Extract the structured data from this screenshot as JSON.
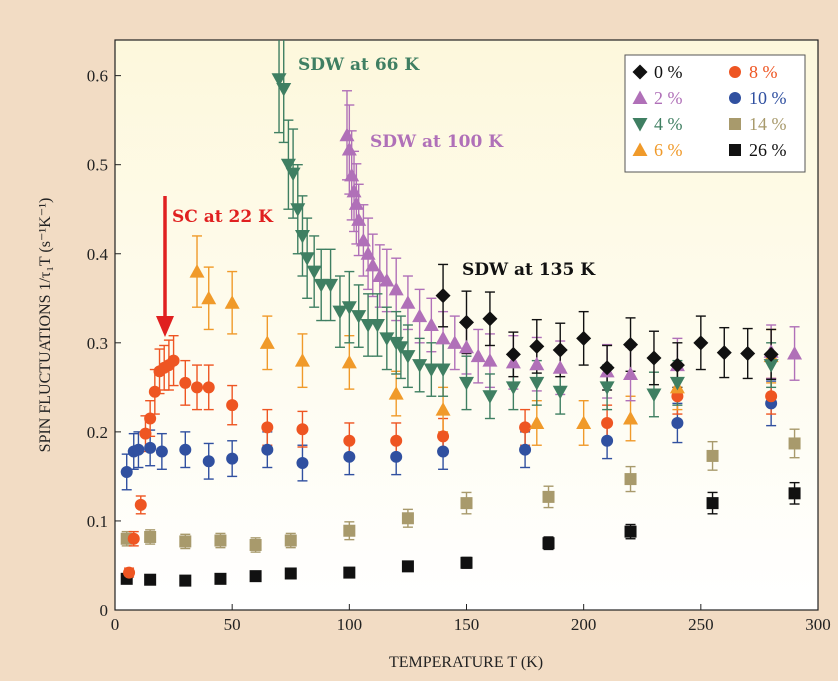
{
  "chart_data": {
    "type": "scatter",
    "xlabel": "TEMPERATURE T (K)",
    "ylabel": "SPIN FLUCTUATIONS 1/τ₁T (s⁻¹K⁻¹)",
    "xlim": [
      0,
      300
    ],
    "ylim": [
      0,
      0.64
    ],
    "xticks": [
      "0",
      "50",
      "100",
      "150",
      "200",
      "250",
      "300"
    ],
    "yticks": [
      "0",
      "0.1",
      "0.2",
      "0.3",
      "0.4",
      "0.5",
      "0.6"
    ],
    "grid": false,
    "legend_position": "top-right",
    "annotations": [
      {
        "text": "SDW at 66 K",
        "color": "#3f7f62"
      },
      {
        "text": "SDW at 100 K",
        "color": "#b070b8"
      },
      {
        "text": "SC at 22 K",
        "color": "#e02020"
      },
      {
        "text": "SDW at 135 K",
        "color": "#111111"
      }
    ],
    "series": [
      {
        "name": "0 %",
        "marker": "diamond",
        "color": "#111111",
        "x": [
          140,
          150,
          160,
          170,
          180,
          190,
          200,
          210,
          220,
          230,
          240,
          250,
          260,
          270,
          280
        ],
        "y": [
          0.353,
          0.323,
          0.327,
          0.287,
          0.296,
          0.292,
          0.305,
          0.272,
          0.298,
          0.283,
          0.275,
          0.3,
          0.289,
          0.288,
          0.287
        ],
        "err": [
          0.035,
          0.035,
          0.03,
          0.025,
          0.03,
          0.03,
          0.03,
          0.025,
          0.03,
          0.03,
          0.025,
          0.03,
          0.028,
          0.028,
          0.028
        ]
      },
      {
        "name": "2 %",
        "marker": "triangle-up",
        "color": "#b070b8",
        "x": [
          99,
          100,
          101,
          102,
          103,
          104,
          106,
          108,
          110,
          113,
          116,
          120,
          125,
          130,
          135,
          140,
          145,
          150,
          155,
          160,
          170,
          180,
          190,
          210,
          220,
          240,
          280,
          290
        ],
        "y": [
          0.533,
          0.517,
          0.488,
          0.47,
          0.456,
          0.438,
          0.415,
          0.4,
          0.387,
          0.375,
          0.37,
          0.36,
          0.345,
          0.33,
          0.32,
          0.305,
          0.3,
          0.295,
          0.285,
          0.28,
          0.278,
          0.276,
          0.272,
          0.268,
          0.265,
          0.275,
          0.29,
          0.288
        ],
        "err": [
          0.05,
          0.05,
          0.05,
          0.045,
          0.045,
          0.04,
          0.04,
          0.04,
          0.035,
          0.035,
          0.035,
          0.035,
          0.03,
          0.03,
          0.03,
          0.03,
          0.03,
          0.03,
          0.03,
          0.03,
          0.03,
          0.03,
          0.03,
          0.03,
          0.03,
          0.03,
          0.03,
          0.03
        ]
      },
      {
        "name": "4 %",
        "marker": "triangle-down",
        "color": "#3f7f62",
        "x": [
          70,
          72,
          74,
          76,
          78,
          80,
          82,
          85,
          88,
          92,
          96,
          100,
          104,
          108,
          112,
          116,
          120,
          122,
          125,
          130,
          135,
          140,
          150,
          160,
          170,
          180,
          190,
          210,
          230,
          240,
          280
        ],
        "y": [
          0.596,
          0.585,
          0.5,
          0.49,
          0.45,
          0.42,
          0.395,
          0.38,
          0.365,
          0.365,
          0.335,
          0.34,
          0.33,
          0.32,
          0.32,
          0.305,
          0.3,
          0.295,
          0.285,
          0.275,
          0.27,
          0.27,
          0.255,
          0.24,
          0.25,
          0.255,
          0.245,
          0.25,
          0.242,
          0.255,
          0.275
        ],
        "err": [
          0.06,
          0.06,
          0.05,
          0.05,
          0.05,
          0.045,
          0.045,
          0.04,
          0.04,
          0.04,
          0.04,
          0.04,
          0.035,
          0.035,
          0.035,
          0.035,
          0.035,
          0.035,
          0.035,
          0.03,
          0.03,
          0.03,
          0.03,
          0.025,
          0.025,
          0.025,
          0.025,
          0.025,
          0.025,
          0.025,
          0.025
        ]
      },
      {
        "name": "6 %",
        "marker": "triangle-up",
        "color": "#f09a2a",
        "x": [
          35,
          40,
          50,
          65,
          80,
          100,
          120,
          140,
          180,
          200,
          220,
          240,
          280
        ],
        "y": [
          0.38,
          0.35,
          0.345,
          0.3,
          0.28,
          0.278,
          0.243,
          0.225,
          0.21,
          0.21,
          0.215,
          0.25,
          0.285
        ],
        "err": [
          0.04,
          0.035,
          0.035,
          0.03,
          0.03,
          0.03,
          0.025,
          0.025,
          0.025,
          0.025,
          0.025,
          0.025,
          0.03
        ]
      },
      {
        "name": "8 %",
        "marker": "circle",
        "color": "#ee5522",
        "x": [
          6,
          8,
          11,
          13,
          15,
          17,
          19,
          21,
          23,
          25,
          30,
          35,
          40,
          50,
          65,
          80,
          100,
          120,
          140,
          175,
          210,
          240,
          280
        ],
        "y": [
          0.042,
          0.08,
          0.118,
          0.198,
          0.215,
          0.245,
          0.268,
          0.272,
          0.275,
          0.28,
          0.255,
          0.25,
          0.25,
          0.23,
          0.205,
          0.203,
          0.19,
          0.19,
          0.195,
          0.205,
          0.21,
          0.24,
          0.24
        ],
        "err": [
          0.005,
          0.008,
          0.01,
          0.02,
          0.02,
          0.025,
          0.025,
          0.025,
          0.028,
          0.028,
          0.025,
          0.025,
          0.025,
          0.022,
          0.02,
          0.02,
          0.02,
          0.02,
          0.02,
          0.02,
          0.02,
          0.02,
          0.02
        ]
      },
      {
        "name": "10 %",
        "marker": "circle",
        "color": "#3050a0",
        "x": [
          5,
          8,
          10,
          15,
          20,
          30,
          40,
          50,
          65,
          80,
          100,
          120,
          140,
          175,
          210,
          240,
          280
        ],
        "y": [
          0.155,
          0.178,
          0.18,
          0.182,
          0.178,
          0.18,
          0.167,
          0.17,
          0.18,
          0.165,
          0.172,
          0.172,
          0.178,
          0.18,
          0.19,
          0.21,
          0.232
        ],
        "err": [
          0.02,
          0.02,
          0.02,
          0.02,
          0.02,
          0.02,
          0.02,
          0.02,
          0.02,
          0.02,
          0.02,
          0.02,
          0.02,
          0.02,
          0.02,
          0.022,
          0.025
        ]
      },
      {
        "name": "14 %",
        "marker": "square",
        "color": "#a89a6c",
        "x": [
          5,
          15,
          30,
          45,
          60,
          75,
          100,
          125,
          150,
          185,
          220,
          255,
          290
        ],
        "y": [
          0.08,
          0.082,
          0.077,
          0.078,
          0.073,
          0.078,
          0.089,
          0.103,
          0.12,
          0.127,
          0.147,
          0.173,
          0.187
        ],
        "err": [
          0.008,
          0.008,
          0.008,
          0.008,
          0.008,
          0.008,
          0.01,
          0.01,
          0.012,
          0.012,
          0.014,
          0.016,
          0.016
        ]
      },
      {
        "name": "26 %",
        "marker": "square",
        "color": "#111111",
        "x": [
          5,
          15,
          30,
          45,
          60,
          75,
          100,
          125,
          150,
          185,
          220,
          255,
          290
        ],
        "y": [
          0.035,
          0.034,
          0.033,
          0.035,
          0.038,
          0.041,
          0.042,
          0.049,
          0.053,
          0.075,
          0.088,
          0.12,
          0.131
        ],
        "err": [
          0.004,
          0.004,
          0.004,
          0.004,
          0.004,
          0.004,
          0.005,
          0.005,
          0.006,
          0.007,
          0.008,
          0.012,
          0.012
        ]
      }
    ]
  }
}
